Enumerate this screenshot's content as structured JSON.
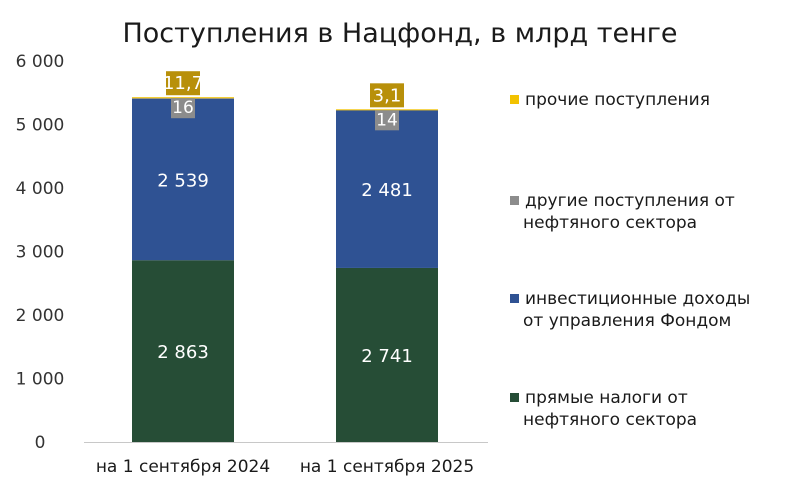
{
  "chart_data": {
    "type": "bar",
    "stacked": true,
    "title": "Поступления в Нацфонд, в млрд тенге",
    "categories": [
      "на 1 сентября 2024",
      "на 1 сентября 2025"
    ],
    "ylim": [
      0,
      6000
    ],
    "yticks": [
      0,
      1000,
      2000,
      3000,
      4000,
      5000,
      6000
    ],
    "ytick_labels": [
      "0",
      "1 000",
      "2 000",
      "3 000",
      "4 000",
      "5 000",
      "6 000"
    ],
    "grid": false,
    "legend_position": "right",
    "series": [
      {
        "name": "прямые налоги от нефтяного сектора",
        "legend_lines": [
          "прямые налоги от",
          "нефтяного сектора"
        ],
        "color": "#264D36",
        "label_color": "#ffffff",
        "values": [
          2863,
          2741
        ],
        "labels": [
          "2 863",
          "2 741"
        ]
      },
      {
        "name": "инвестиционные доходы от управления Фондом",
        "legend_lines": [
          "инвестиционные доходы",
          "от управления Фондом"
        ],
        "color": "#2F5293",
        "label_color": "#ffffff",
        "values": [
          2539,
          2481
        ],
        "labels": [
          "2 539",
          "2 481"
        ]
      },
      {
        "name": "другие поступления от нефтяного сектора",
        "legend_lines": [
          "другие поступления от",
          "нефтяного сектора"
        ],
        "color": "#8C8C8C",
        "label_color": "#ffffff",
        "values": [
          16,
          14
        ],
        "labels": [
          "16",
          "14"
        ]
      },
      {
        "name": "прочие поступления",
        "legend_lines": [
          "прочие поступления"
        ],
        "color": "#F2C200",
        "label_bg": "#B8900A",
        "label_color": "#ffffff",
        "values": [
          11.7,
          3.1
        ],
        "labels": [
          "11,7",
          "3,1"
        ]
      }
    ]
  }
}
